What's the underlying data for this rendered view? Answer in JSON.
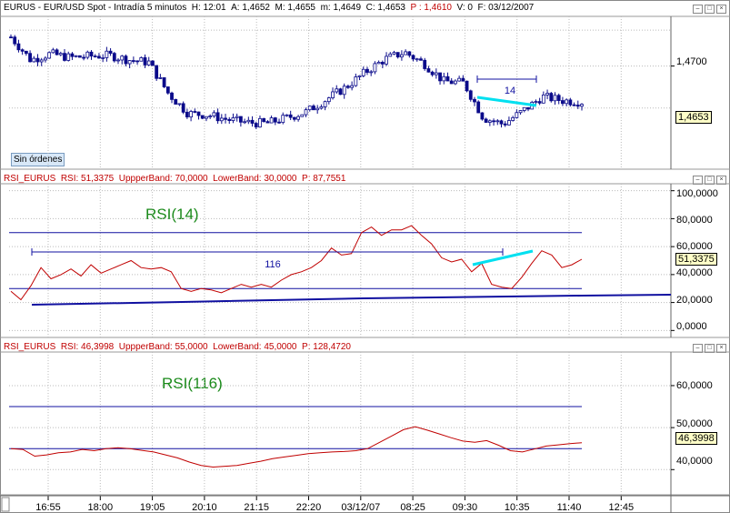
{
  "price_panel": {
    "symbol": "EURUS",
    "title_parts": [
      "EUR/USD Spot - Intradía 5 minutos",
      "H: 12:01",
      "A: 1,4652",
      "M: 1,4655",
      "m: 1,4649",
      "C: 1,4653",
      "P : 1,4610",
      "V: 0",
      "F: 03/12/2007"
    ],
    "axis_labels": [
      "1,4700"
    ],
    "current_value": "1,4653",
    "status_button": "Sin órdenes",
    "annotation": "14",
    "colors": {
      "candle": "#0a0a8a",
      "trendline": "#00e0f0"
    }
  },
  "rsi14_panel": {
    "title_parts": [
      "RSI_EURUS",
      "RSI: 51,3375",
      "UppperBand: 70,0000",
      "LowerBand: 30,0000",
      "P: 87,7551"
    ],
    "label": "RSI(14)",
    "axis_labels": [
      "100,0000",
      "80,0000",
      "60,0000",
      "40,0000",
      "20,0000",
      "0,0000"
    ],
    "current_value": "51,3375",
    "annotation": "116",
    "colors": {
      "line": "#c00000",
      "band": "#1010a0",
      "trendline": "#00e0f0"
    }
  },
  "rsi116_panel": {
    "title_parts": [
      "RSI_EURUS",
      "RSI: 46,3998",
      "UppperBand: 55,0000",
      "LowerBand: 45,0000",
      "P: 128,4720"
    ],
    "label": "RSI(116)",
    "axis_labels": [
      "60,0000",
      "50,0000",
      "40,0000"
    ],
    "current_value": "46,3998"
  },
  "time_axis": [
    "16:55",
    "18:00",
    "19:05",
    "20:10",
    "21:15",
    "22:20",
    "03/12/07",
    "08:25",
    "09:30",
    "10:35",
    "11:40",
    "12:45"
  ],
  "chart_data": [
    {
      "type": "candlestick",
      "title": "EURUS - EUR/USD Spot - Intradía 5 minutos",
      "x": [
        "16:55",
        "18:00",
        "19:05",
        "20:10",
        "21:15",
        "22:20",
        "03/12/07",
        "08:25",
        "09:30",
        "10:35",
        "11:40",
        "12:45"
      ],
      "ylim": [
        1.4565,
        1.4765
      ],
      "y_ticks": [
        1.47
      ],
      "close_approx": [
        1.4738,
        1.4708,
        1.4716,
        1.4711,
        1.4713,
        1.4714,
        1.4708,
        1.4705,
        1.4664,
        1.4638,
        1.4636,
        1.463,
        1.4626,
        1.4625,
        1.4632,
        1.464,
        1.4656,
        1.4672,
        1.4692,
        1.4709,
        1.4718,
        1.4703,
        1.468,
        1.4678,
        1.4632,
        1.4624,
        1.4641,
        1.466,
        1.4655,
        1.4653
      ],
      "current": 1.4653
    },
    {
      "type": "line",
      "title": "RSI_EURUS",
      "label": "RSI(14)",
      "ylim": [
        -5,
        105
      ],
      "y_ticks": [
        100,
        80,
        60,
        40,
        20,
        0
      ],
      "bands": {
        "upper": 70,
        "lower": 30
      },
      "values": [
        28,
        22,
        32,
        45,
        37,
        40,
        44,
        39,
        47,
        41,
        44,
        47,
        50,
        45,
        44,
        45,
        42,
        30,
        28,
        30,
        29,
        27,
        30,
        33,
        31,
        33,
        31,
        36,
        40,
        42,
        45,
        50,
        59,
        54,
        55,
        70,
        74,
        68,
        72,
        72,
        75,
        68,
        62,
        52,
        49,
        51,
        42,
        48,
        33,
        31,
        30,
        38,
        48,
        57,
        54,
        45,
        47,
        51
      ],
      "current": 51.3375
    },
    {
      "type": "line",
      "title": "RSI_EURUS",
      "label": "RSI(116)",
      "ylim": [
        34,
        68
      ],
      "y_ticks": [
        60,
        50,
        40
      ],
      "bands": {
        "upper": 55,
        "lower": 45
      },
      "values": [
        45,
        44.8,
        43.2,
        43.5,
        44,
        44.2,
        44.8,
        44.5,
        45,
        45.2,
        45,
        44.6,
        44.2,
        43.5,
        42.8,
        41.8,
        41,
        40.6,
        40.8,
        41,
        41.5,
        42,
        42.6,
        43,
        43.4,
        43.8,
        44,
        44.2,
        44.3,
        44.5,
        45,
        46.5,
        48,
        49.5,
        50.2,
        49.4,
        48.5,
        47.6,
        46.8,
        46.5,
        46.9,
        45.8,
        44.5,
        44.2,
        44.9,
        45.6,
        45.9,
        46.2,
        46.4
      ],
      "current": 46.3998
    }
  ]
}
